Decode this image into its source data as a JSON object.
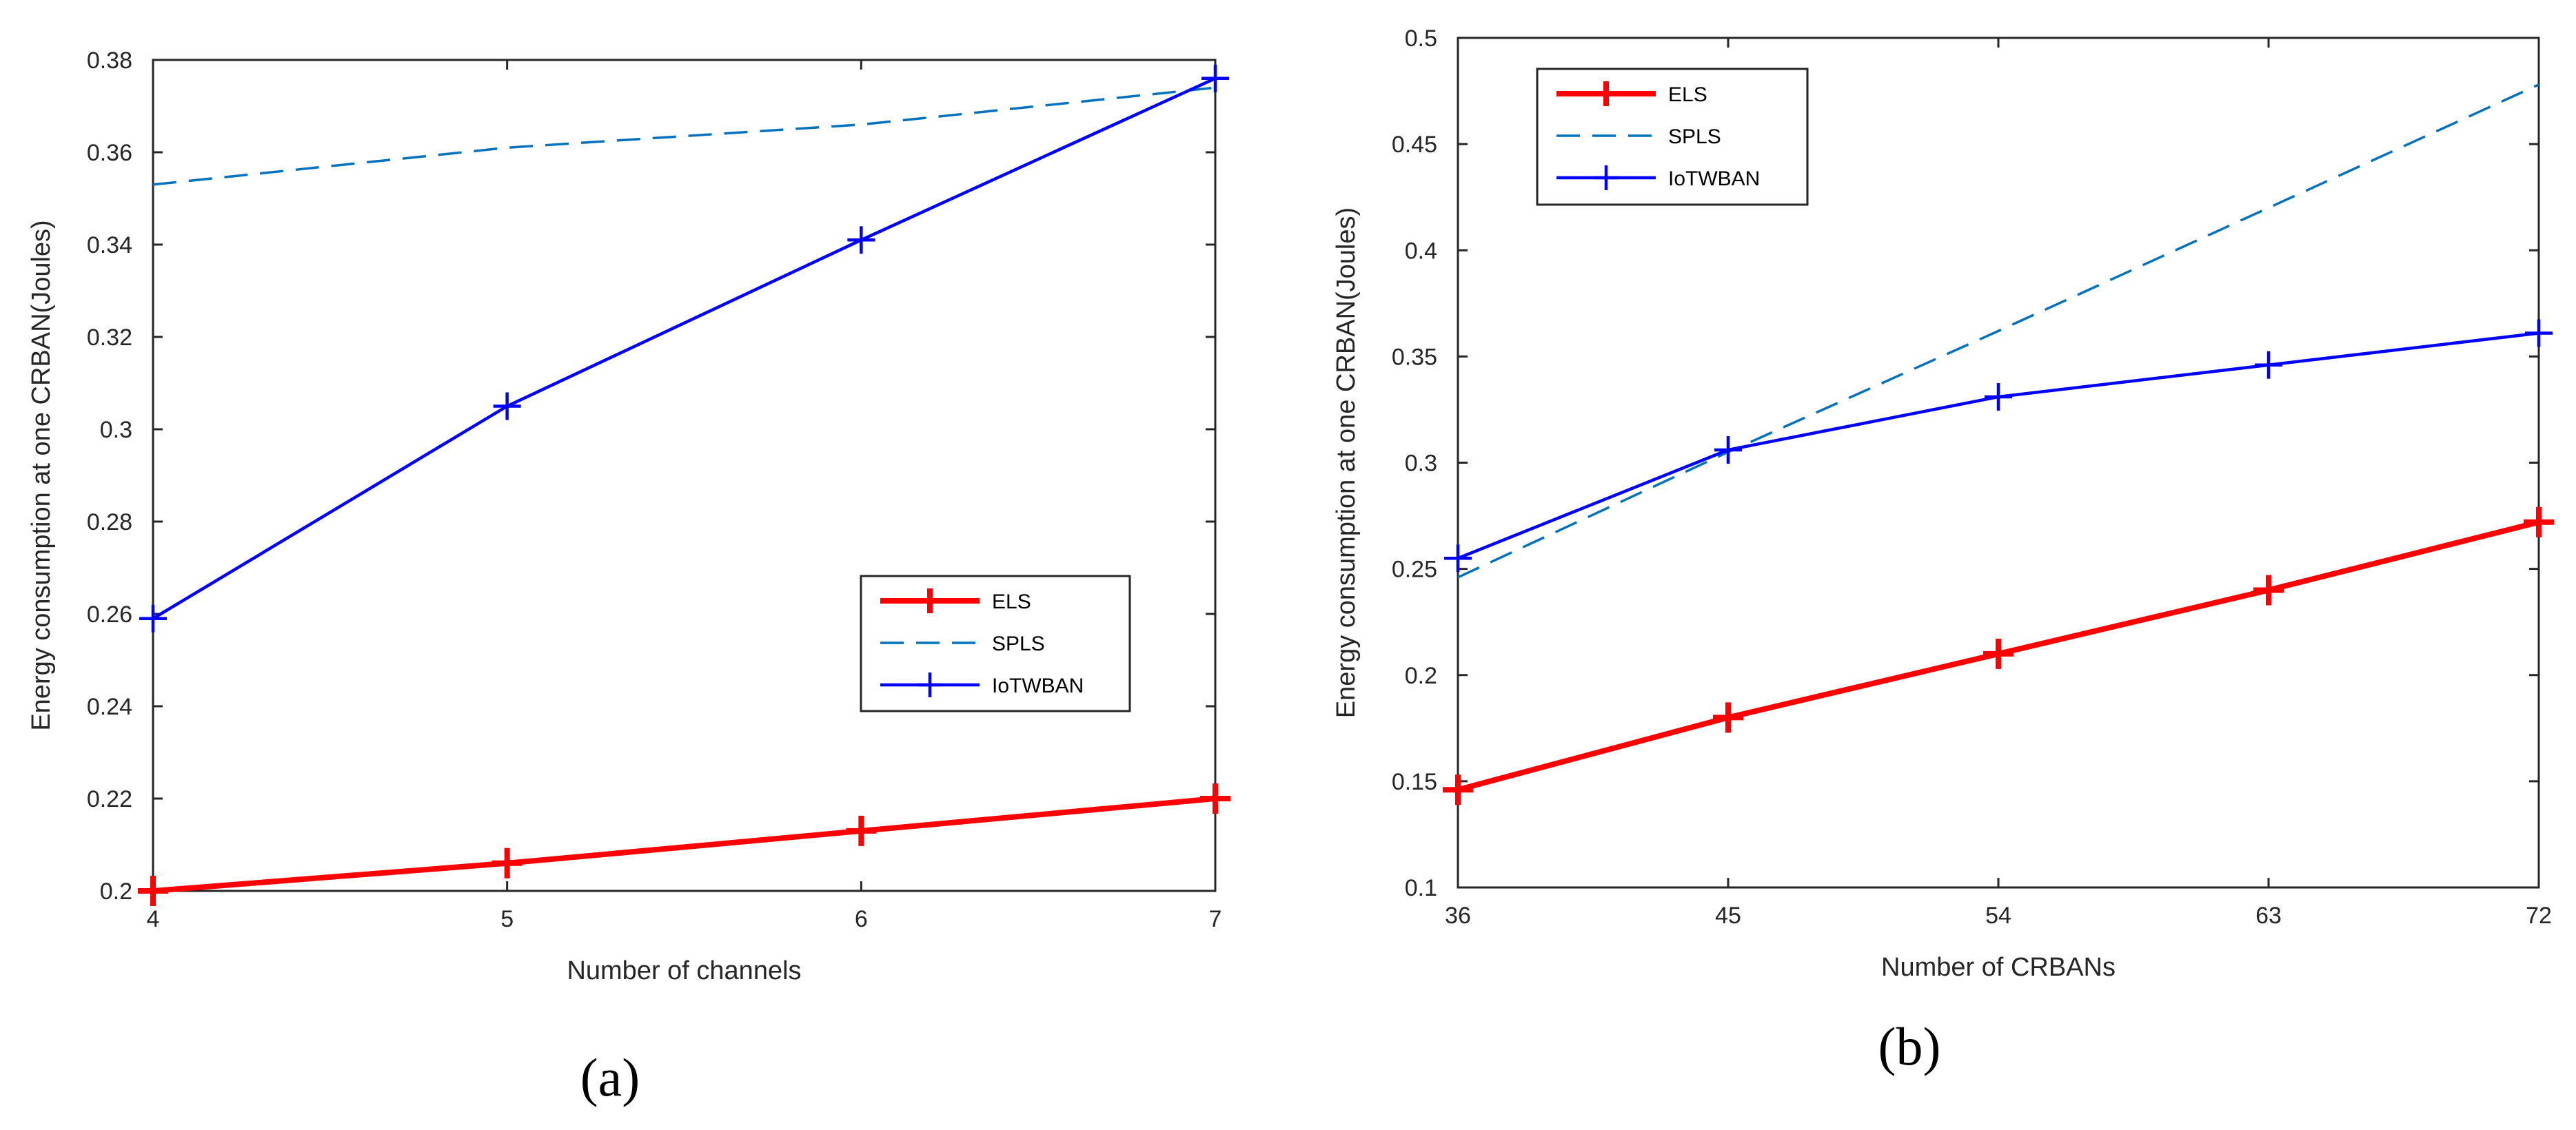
{
  "chart_data": [
    {
      "type": "line",
      "panel_label": "(a)",
      "xlabel": "Number of channels",
      "ylabel": "Energy consumption at one CRBAN(Joules)",
      "xlim": [
        4,
        7
      ],
      "ylim": [
        0.2,
        0.38
      ],
      "xticks": [
        4,
        5,
        6,
        7
      ],
      "xtick_labels": [
        "4",
        "5",
        "6",
        "7"
      ],
      "yticks": [
        0.2,
        0.22,
        0.24,
        0.26,
        0.28,
        0.3,
        0.32,
        0.34,
        0.36,
        0.38
      ],
      "ytick_labels": [
        "0.2",
        "0.22",
        "0.24",
        "0.26",
        "0.28",
        "0.3",
        "0.32",
        "0.34",
        "0.36",
        "0.38"
      ],
      "legend_position": "lower-right",
      "series": [
        {
          "name": "ELS",
          "color": "#ff0000",
          "style": "solid-thick",
          "marker": "+",
          "x": [
            4,
            5,
            6,
            7
          ],
          "y": [
            0.2,
            0.206,
            0.213,
            0.22
          ]
        },
        {
          "name": "SPLS",
          "color": "#0072bd",
          "style": "dashed",
          "marker": "none",
          "x": [
            4,
            5,
            6,
            7
          ],
          "y": [
            0.353,
            0.361,
            0.366,
            0.374
          ]
        },
        {
          "name": "IoTWBAN",
          "color": "#0000ff",
          "style": "solid",
          "marker": "+",
          "x": [
            4,
            5,
            6,
            7
          ],
          "y": [
            0.259,
            0.305,
            0.341,
            0.376
          ]
        }
      ]
    },
    {
      "type": "line",
      "panel_label": "(b)",
      "xlabel": "Number of CRBANs",
      "ylabel": "Energy consumption at one CRBAN(Joules)",
      "xlim": [
        36,
        72
      ],
      "ylim": [
        0.1,
        0.5
      ],
      "xticks": [
        36,
        45,
        54,
        63,
        72
      ],
      "xtick_labels": [
        "36",
        "45",
        "54",
        "63",
        "72"
      ],
      "yticks": [
        0.1,
        0.15,
        0.2,
        0.25,
        0.3,
        0.35,
        0.4,
        0.45,
        0.5
      ],
      "ytick_labels": [
        "0.1",
        "0.15",
        "0.2",
        "0.25",
        "0.3",
        "0.35",
        "0.4",
        "0.45",
        "0.5"
      ],
      "legend_position": "top-left",
      "series": [
        {
          "name": "ELS",
          "color": "#ff0000",
          "style": "solid-thick",
          "marker": "+",
          "x": [
            36,
            45,
            54,
            63,
            72
          ],
          "y": [
            0.146,
            0.18,
            0.21,
            0.24,
            0.272
          ]
        },
        {
          "name": "SPLS",
          "color": "#0072bd",
          "style": "dashed",
          "marker": "none",
          "x": [
            36,
            45,
            54,
            63,
            72
          ],
          "y": [
            0.246,
            0.305,
            0.362,
            0.42,
            0.478
          ]
        },
        {
          "name": "IoTWBAN",
          "color": "#0000ff",
          "style": "solid",
          "marker": "+",
          "x": [
            36,
            45,
            54,
            63,
            72
          ],
          "y": [
            0.255,
            0.306,
            0.331,
            0.346,
            0.361
          ]
        }
      ]
    }
  ]
}
